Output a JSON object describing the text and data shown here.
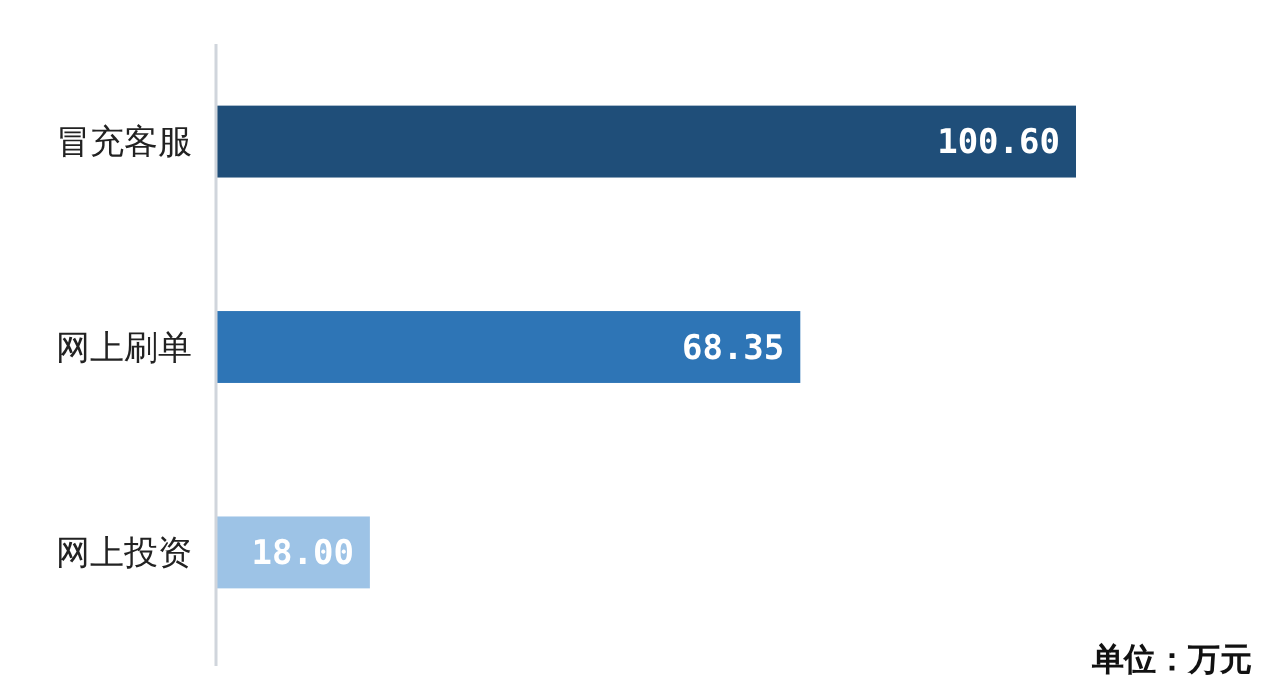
{
  "chart_data": {
    "type": "bar",
    "orientation": "horizontal",
    "categories": [
      "冒充客服",
      "网上刷单",
      "网上投资"
    ],
    "values": [
      100.6,
      68.35,
      18.0
    ],
    "colors": [
      "#1f4e79",
      "#2e75b6",
      "#9dc3e6"
    ],
    "value_labels": [
      "100.60",
      "68.35",
      "18.00"
    ],
    "tick_labels": "y",
    "annotations": [
      "单位：万元"
    ]
  }
}
